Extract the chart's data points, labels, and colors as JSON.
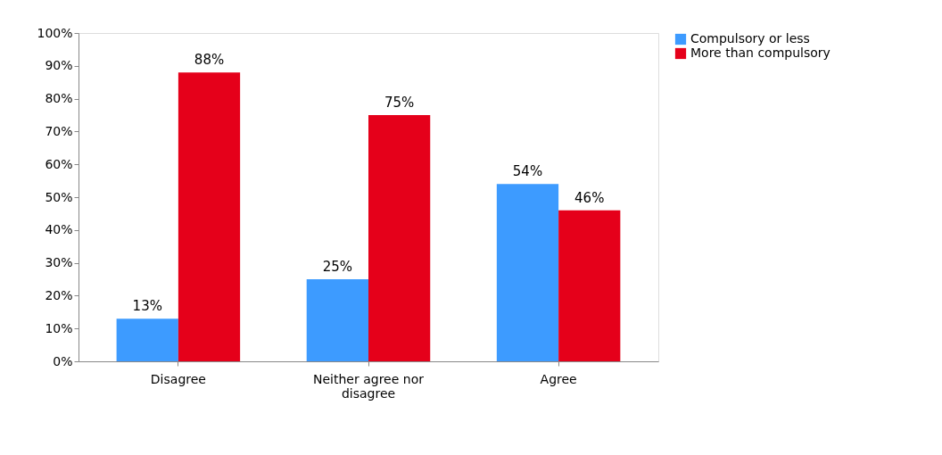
{
  "chart_data": {
    "type": "bar",
    "categories": [
      "Disagree",
      "Neither agree nor disagree",
      "Agree"
    ],
    "series": [
      {
        "name": "Compulsory or less",
        "color": "#3d9bff",
        "values": [
          13,
          25,
          54
        ],
        "value_labels": [
          "13%",
          "25%",
          "54%"
        ]
      },
      {
        "name": "More than compulsory",
        "color": "#e5001a",
        "values": [
          88,
          75,
          46
        ],
        "value_labels": [
          "88%",
          "75%",
          "46%"
        ]
      }
    ],
    "ylim": [
      0,
      100
    ],
    "yticks": [
      {
        "value": 0,
        "label": "0%"
      },
      {
        "value": 10,
        "label": "10%"
      },
      {
        "value": 20,
        "label": "20%"
      },
      {
        "value": 30,
        "label": "30%"
      },
      {
        "value": 40,
        "label": "40%"
      },
      {
        "value": 50,
        "label": "50%"
      },
      {
        "value": 60,
        "label": "60%"
      },
      {
        "value": 70,
        "label": "70%"
      },
      {
        "value": 80,
        "label": "80%"
      },
      {
        "value": 90,
        "label": "90%"
      },
      {
        "value": 100,
        "label": "100%"
      }
    ],
    "grid": false,
    "legend": "right"
  }
}
